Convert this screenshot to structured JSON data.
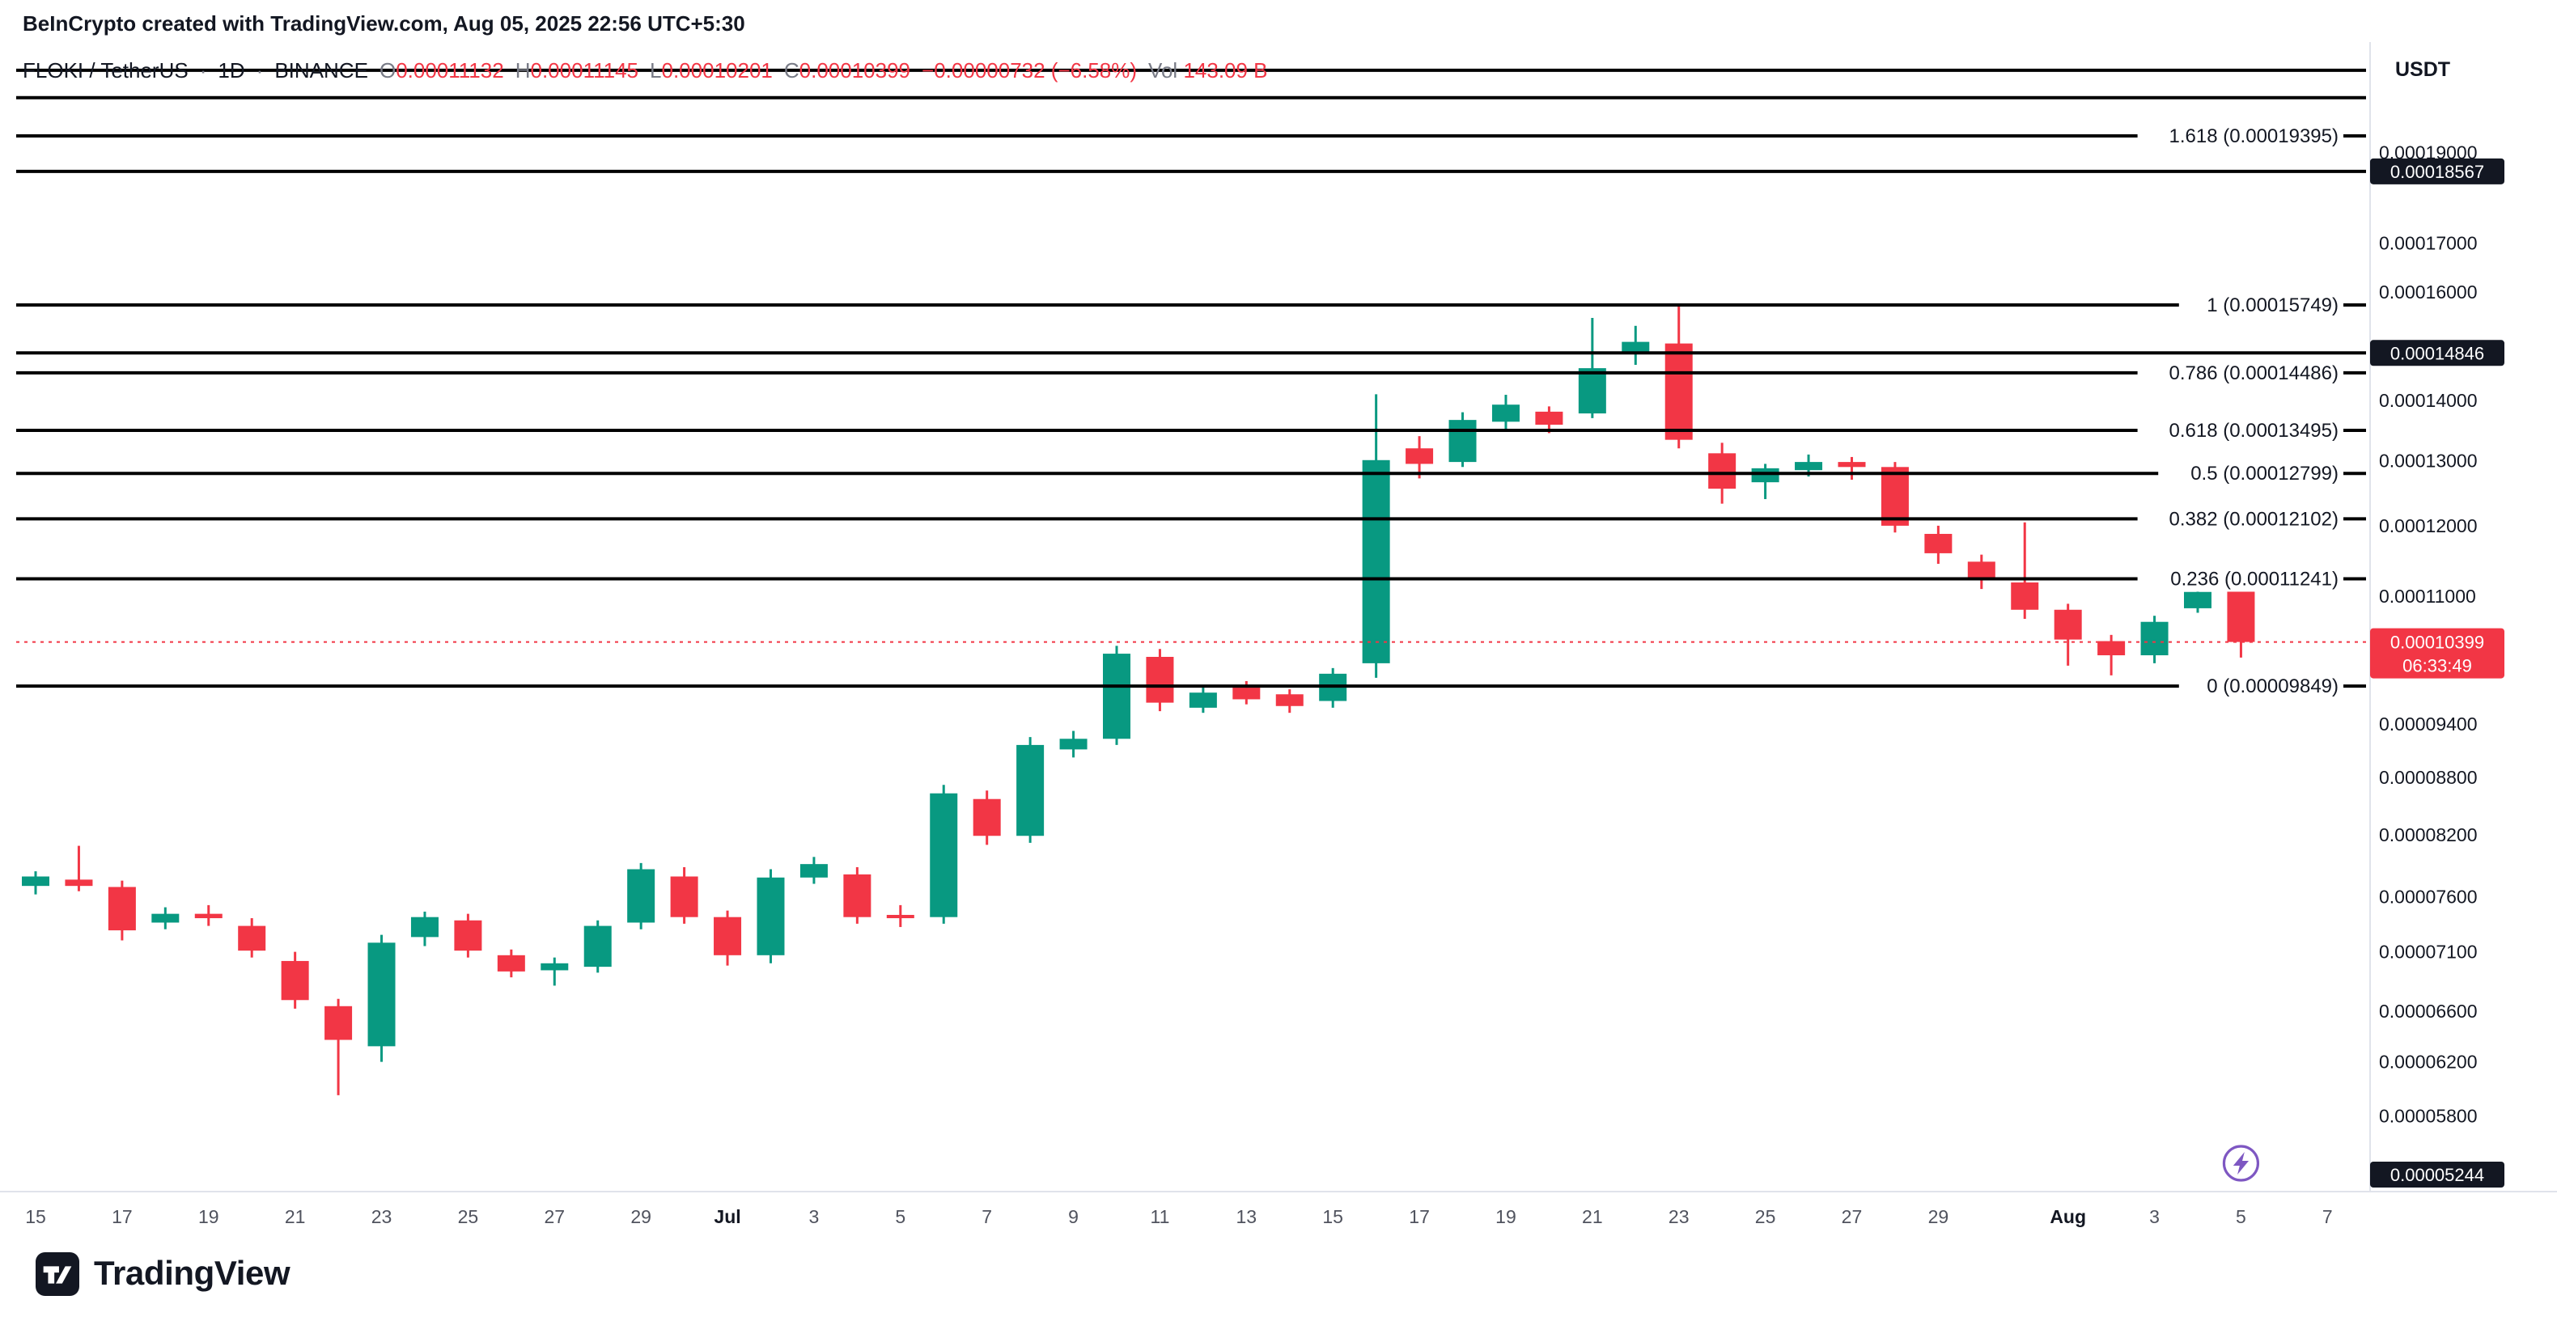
{
  "header": {
    "title": "BeInCrypto created with TradingView.com, Aug 05, 2025 22:56 UTC+5:30"
  },
  "legend": {
    "symbol": "FLOKI / TetherUS",
    "separator": "·",
    "interval": "1D",
    "exchange": "BINANCE",
    "ohlc": [
      {
        "key": "O",
        "value": "0.00011132"
      },
      {
        "key": "H",
        "value": "0.00011145"
      },
      {
        "key": "L",
        "value": "0.00010201"
      },
      {
        "key": "C",
        "value": "0.00010399"
      }
    ],
    "change": "−0.00000732 (−6.58%)",
    "volume_label": "Vol",
    "volume_value": "143.09 B"
  },
  "axis": {
    "currency_label": "USDT"
  },
  "footer": {
    "brand": "TradingView"
  },
  "colors": {
    "up": "#089981",
    "down": "#F23645",
    "line_black": "#000000",
    "badge_dark": "#131722",
    "axis_text": "#131722",
    "time_text": "#50535e",
    "border_gray": "#e0e3eb",
    "purple": "#7E57C2"
  },
  "chart_data": {
    "type": "candlestick",
    "title": "FLOKI / TetherUS · 1D · BINANCE",
    "y_axis": {
      "scale": "log",
      "min": 5.3e-05,
      "max": 0.000216,
      "ticks": [
        {
          "label": "0.00019000",
          "value": 0.00019
        },
        {
          "label": "0.00017000",
          "value": 0.00017
        },
        {
          "label": "0.00016000",
          "value": 0.00016
        },
        {
          "label": "0.00014000",
          "value": 0.00014
        },
        {
          "label": "0.00013000",
          "value": 0.00013
        },
        {
          "label": "0.00012000",
          "value": 0.00012
        },
        {
          "label": "0.00011000",
          "value": 0.00011
        },
        {
          "label": "0.00009400",
          "value": 9.4e-05
        },
        {
          "label": "0.00008800",
          "value": 8.8e-05
        },
        {
          "label": "0.00008200",
          "value": 8.2e-05
        },
        {
          "label": "0.00007600",
          "value": 7.6e-05
        },
        {
          "label": "0.00007100",
          "value": 7.1e-05
        },
        {
          "label": "0.00006600",
          "value": 6.6e-05
        },
        {
          "label": "0.00006200",
          "value": 6.2e-05
        },
        {
          "label": "0.00005800",
          "value": 5.8e-05
        }
      ]
    },
    "x_ticks": [
      {
        "label": "15",
        "index": 0
      },
      {
        "label": "17",
        "index": 2
      },
      {
        "label": "19",
        "index": 4
      },
      {
        "label": "21",
        "index": 6
      },
      {
        "label": "23",
        "index": 8
      },
      {
        "label": "25",
        "index": 10
      },
      {
        "label": "27",
        "index": 12
      },
      {
        "label": "29",
        "index": 14
      },
      {
        "label": "Jul",
        "index": 16,
        "bold": true
      },
      {
        "label": "3",
        "index": 18
      },
      {
        "label": "5",
        "index": 20
      },
      {
        "label": "7",
        "index": 22
      },
      {
        "label": "9",
        "index": 24
      },
      {
        "label": "11",
        "index": 26
      },
      {
        "label": "13",
        "index": 28
      },
      {
        "label": "15",
        "index": 30
      },
      {
        "label": "17",
        "index": 32
      },
      {
        "label": "19",
        "index": 34
      },
      {
        "label": "21",
        "index": 36
      },
      {
        "label": "23",
        "index": 38
      },
      {
        "label": "25",
        "index": 40
      },
      {
        "label": "27",
        "index": 42
      },
      {
        "label": "29",
        "index": 44
      },
      {
        "label": "Aug",
        "index": 47,
        "bold": true
      },
      {
        "label": "3",
        "index": 49
      },
      {
        "label": "5",
        "index": 51
      },
      {
        "label": "7",
        "index": 53
      }
    ],
    "fib_levels": [
      {
        "level": "1.618",
        "price": 0.00019395,
        "label": "1.618 (0.00019395)"
      },
      {
        "level": "1",
        "price": 0.00015749,
        "label": "1 (0.00015749)"
      },
      {
        "level": "0.786",
        "price": 0.00014486,
        "label": "0.786 (0.00014486)"
      },
      {
        "level": "0.618",
        "price": 0.00013495,
        "label": "0.618 (0.00013495)"
      },
      {
        "level": "0.5",
        "price": 0.00012799,
        "label": "0.5 (0.00012799)"
      },
      {
        "level": "0.382",
        "price": 0.00012102,
        "label": "0.382 (0.00012102)"
      },
      {
        "level": "0.236",
        "price": 0.00011241,
        "label": "0.236 (0.00011241)"
      },
      {
        "level": "0",
        "price": 9.849e-05,
        "label": "0 (0.00009849)"
      }
    ],
    "horizontal_lines": [
      {
        "price": 0.0002103
      },
      {
        "price": 0.0002033
      },
      {
        "price": 0.00018567,
        "badge": "0.00018567"
      },
      {
        "price": 0.00014846,
        "badge": "0.00014846"
      },
      {
        "price": 5.244e-05,
        "badge": "0.00005244",
        "badge_only": true
      }
    ],
    "current_price": {
      "price": 0.00010399,
      "label": "0.00010399",
      "countdown": "06:33:49"
    },
    "candles": [
      {
        "d": "Jun 15",
        "o": 7.7e-05,
        "h": 7.84e-05,
        "l": 7.62e-05,
        "c": 7.79e-05
      },
      {
        "d": "Jun 16",
        "o": 7.76e-05,
        "h": 8.09e-05,
        "l": 7.65e-05,
        "c": 7.7e-05
      },
      {
        "d": "Jun 17",
        "o": 7.69e-05,
        "h": 7.75e-05,
        "l": 7.2e-05,
        "c": 7.29e-05
      },
      {
        "d": "Jun 18",
        "o": 7.36e-05,
        "h": 7.5e-05,
        "l": 7.3e-05,
        "c": 7.44e-05
      },
      {
        "d": "Jun 19",
        "o": 7.44e-05,
        "h": 7.52e-05,
        "l": 7.33e-05,
        "c": 7.4e-05
      },
      {
        "d": "Jun 20",
        "o": 7.33e-05,
        "h": 7.4e-05,
        "l": 7.05e-05,
        "c": 7.11e-05
      },
      {
        "d": "Jun 21",
        "o": 7.02e-05,
        "h": 7.1e-05,
        "l": 6.62e-05,
        "c": 6.69e-05
      },
      {
        "d": "Jun 22",
        "o": 6.64e-05,
        "h": 6.7e-05,
        "l": 5.95e-05,
        "c": 6.37e-05
      },
      {
        "d": "Jun 23",
        "o": 6.32e-05,
        "h": 7.25e-05,
        "l": 6.2e-05,
        "c": 7.18e-05
      },
      {
        "d": "Jun 24",
        "o": 7.23e-05,
        "h": 7.46e-05,
        "l": 7.15e-05,
        "c": 7.41e-05
      },
      {
        "d": "Jun 25",
        "o": 7.38e-05,
        "h": 7.44e-05,
        "l": 7.05e-05,
        "c": 7.11e-05
      },
      {
        "d": "Jun 26",
        "o": 7.07e-05,
        "h": 7.12e-05,
        "l": 6.88e-05,
        "c": 6.93e-05
      },
      {
        "d": "Jun 27",
        "o": 6.94e-05,
        "h": 7.05e-05,
        "l": 6.81e-05,
        "c": 7e-05
      },
      {
        "d": "Jun 28",
        "o": 6.97e-05,
        "h": 7.38e-05,
        "l": 6.92e-05,
        "c": 7.33e-05
      },
      {
        "d": "Jun 29",
        "o": 7.36e-05,
        "h": 7.92e-05,
        "l": 7.3e-05,
        "c": 7.86e-05
      },
      {
        "d": "Jun 30",
        "o": 7.79e-05,
        "h": 7.88e-05,
        "l": 7.35e-05,
        "c": 7.41e-05
      },
      {
        "d": "Jul 1",
        "o": 7.41e-05,
        "h": 7.47e-05,
        "l": 6.98e-05,
        "c": 7.07e-05
      },
      {
        "d": "Jul 2",
        "o": 7.07e-05,
        "h": 7.86e-05,
        "l": 7e-05,
        "c": 7.78e-05
      },
      {
        "d": "Jul 3",
        "o": 7.78e-05,
        "h": 7.98e-05,
        "l": 7.72e-05,
        "c": 7.91e-05
      },
      {
        "d": "Jul 4",
        "o": 7.81e-05,
        "h": 7.88e-05,
        "l": 7.35e-05,
        "c": 7.41e-05
      },
      {
        "d": "Jul 5",
        "o": 7.43e-05,
        "h": 7.52e-05,
        "l": 7.32e-05,
        "c": 7.4e-05
      },
      {
        "d": "Jul 6",
        "o": 7.41e-05,
        "h": 8.72e-05,
        "l": 7.35e-05,
        "c": 8.63e-05
      },
      {
        "d": "Jul 7",
        "o": 8.57e-05,
        "h": 8.66e-05,
        "l": 8.1e-05,
        "c": 8.19e-05
      },
      {
        "d": "Jul 8",
        "o": 8.19e-05,
        "h": 9.25e-05,
        "l": 8.12e-05,
        "c": 9.16e-05
      },
      {
        "d": "Jul 9",
        "o": 9.11e-05,
        "h": 9.32e-05,
        "l": 9.02e-05,
        "c": 9.23e-05
      },
      {
        "d": "Jul 10",
        "o": 9.23e-05,
        "h": 0.0001035,
        "l": 9.16e-05,
        "c": 0.0001025
      },
      {
        "d": "Jul 11",
        "o": 0.0001021,
        "h": 0.0001031,
        "l": 9.55e-05,
        "c": 9.65e-05
      },
      {
        "d": "Jul 12",
        "o": 9.59e-05,
        "h": 9.83e-05,
        "l": 9.53e-05,
        "c": 9.77e-05
      },
      {
        "d": "Jul 13",
        "o": 9.83e-05,
        "h": 9.91e-05,
        "l": 9.63e-05,
        "c": 9.69e-05
      },
      {
        "d": "Jul 14",
        "o": 9.75e-05,
        "h": 9.81e-05,
        "l": 9.53e-05,
        "c": 9.61e-05
      },
      {
        "d": "Jul 15",
        "o": 9.67e-05,
        "h": 0.0001007,
        "l": 9.59e-05,
        "c": 0.0001
      },
      {
        "d": "Jul 16",
        "o": 0.0001013,
        "h": 0.0001411,
        "l": 9.95e-05,
        "c": 0.0001301
      },
      {
        "d": "Jul 17",
        "o": 0.000132,
        "h": 0.000134,
        "l": 0.0001272,
        "c": 0.0001295
      },
      {
        "d": "Jul 18",
        "o": 0.0001298,
        "h": 0.000138,
        "l": 0.000129,
        "c": 0.0001367
      },
      {
        "d": "Jul 19",
        "o": 0.0001364,
        "h": 0.000141,
        "l": 0.000135,
        "c": 0.0001393
      },
      {
        "d": "Jul 20",
        "o": 0.0001381,
        "h": 0.000139,
        "l": 0.0001345,
        "c": 0.0001359
      },
      {
        "d": "Jul 21",
        "o": 0.0001378,
        "h": 0.000155,
        "l": 0.000137,
        "c": 0.0001457
      },
      {
        "d": "Jul 22",
        "o": 0.0001485,
        "h": 0.0001535,
        "l": 0.0001463,
        "c": 0.0001505
      },
      {
        "d": "Jul 23",
        "o": 0.0001502,
        "h": 0.0001572,
        "l": 0.000132,
        "c": 0.0001334
      },
      {
        "d": "Jul 24",
        "o": 0.0001312,
        "h": 0.0001329,
        "l": 0.0001233,
        "c": 0.0001256
      },
      {
        "d": "Jul 25",
        "o": 0.0001266,
        "h": 0.0001295,
        "l": 0.000124,
        "c": 0.0001288
      },
      {
        "d": "Jul 26",
        "o": 0.0001285,
        "h": 0.000131,
        "l": 0.0001275,
        "c": 0.0001298
      },
      {
        "d": "Jul 27",
        "o": 0.0001298,
        "h": 0.0001306,
        "l": 0.000127,
        "c": 0.000129
      },
      {
        "d": "Jul 28",
        "o": 0.000129,
        "h": 0.0001298,
        "l": 0.000119,
        "c": 0.00012
      },
      {
        "d": "Jul 29",
        "o": 0.0001188,
        "h": 0.00012,
        "l": 0.0001145,
        "c": 0.000116
      },
      {
        "d": "Jul 30",
        "o": 0.0001148,
        "h": 0.0001158,
        "l": 0.000111,
        "c": 0.0001125
      },
      {
        "d": "Jul 31",
        "o": 0.0001119,
        "h": 0.0001205,
        "l": 0.000107,
        "c": 0.0001082
      },
      {
        "d": "Aug 1",
        "o": 0.0001082,
        "h": 0.000109,
        "l": 0.000101,
        "c": 0.0001043
      },
      {
        "d": "Aug 2",
        "o": 0.0001041,
        "h": 0.0001049,
        "l": 9.98e-05,
        "c": 0.0001023
      },
      {
        "d": "Aug 3",
        "o": 0.0001023,
        "h": 0.0001074,
        "l": 0.0001013,
        "c": 0.0001066
      },
      {
        "d": "Aug 4",
        "o": 0.0001084,
        "h": 0.0001113,
        "l": 0.0001078,
        "c": 0.0001106
      },
      {
        "d": "Aug 5",
        "o": 0.00011132,
        "h": 0.00011145,
        "l": 0.00010201,
        "c": 0.00010399
      }
    ]
  }
}
